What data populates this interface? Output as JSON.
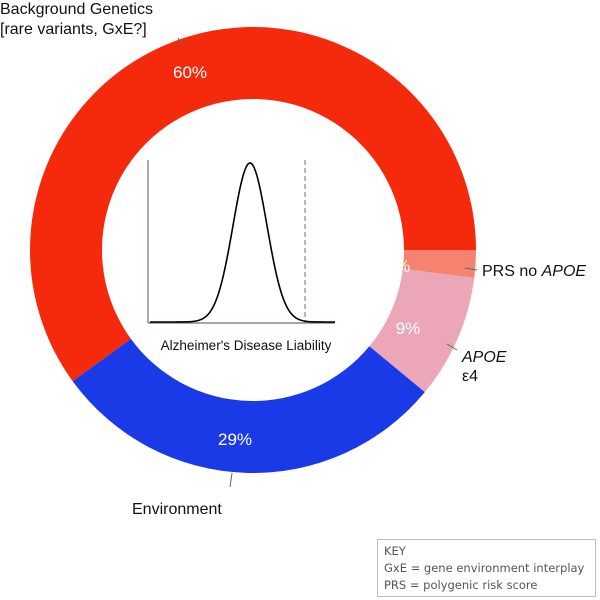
{
  "chart_data": {
    "type": "pie",
    "slices": [
      {
        "label": "PRS no APOE",
        "value": 2,
        "display": "2%",
        "color": "#f58370"
      },
      {
        "label": "APOE ε4",
        "value": 9,
        "display": "9%",
        "color": "#eba7b8"
      },
      {
        "label": "Environment",
        "value": 29,
        "display": "29%",
        "color": "#1a3ae8"
      },
      {
        "label": "Background Genetics [rare variants, GxE?]",
        "value": 60,
        "display": "60%",
        "color": "#f52a0c"
      }
    ],
    "labels": {
      "background_line1": "Background Genetics",
      "background_line2": "[rare variants, GxE?]",
      "prs_prefix": "PRS no ",
      "prs_italic": "APOE",
      "apoe_italic": "APOE",
      "apoe_suffix": "ε4",
      "environment": "Environment"
    },
    "inset": {
      "xlabel": "Alzheimer's Disease Liability"
    }
  },
  "key": {
    "title": "KEY",
    "line1": "GxE = gene environment interplay",
    "line2": "PRS = polygenic risk score"
  }
}
